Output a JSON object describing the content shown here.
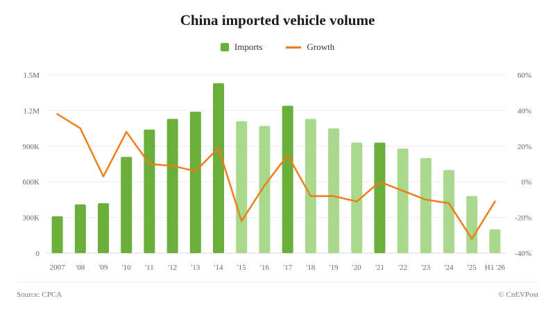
{
  "chart_data": {
    "type": "bar",
    "title": "China imported vehicle volume",
    "categories": [
      "2007",
      "'08",
      "'09",
      "'10",
      "'11",
      "'12",
      "'13",
      "'14",
      "'15",
      "'16",
      "'17",
      "'18",
      "'19",
      "'20",
      "'21",
      "'22",
      "'23",
      "'24",
      "'25",
      "H1 '26"
    ],
    "series": [
      {
        "name": "Imports",
        "type": "bar",
        "axis": "left",
        "values": [
          310000,
          410000,
          420000,
          810000,
          1040000,
          1130000,
          1190000,
          1430000,
          1110000,
          1070000,
          1240000,
          1130000,
          1050000,
          930000,
          930000,
          880000,
          800000,
          700000,
          480000,
          200000
        ],
        "highlighted": [
          true,
          true,
          true,
          true,
          true,
          true,
          true,
          true,
          false,
          false,
          true,
          false,
          false,
          false,
          true,
          false,
          false,
          false,
          false,
          false
        ]
      },
      {
        "name": "Growth",
        "type": "line",
        "axis": "right",
        "values": [
          38,
          30,
          3,
          28,
          10,
          9,
          6,
          19,
          -22,
          -2,
          15,
          -8,
          -8,
          -11,
          0,
          -5,
          -10,
          -12,
          -32,
          -11
        ]
      }
    ],
    "yleft": {
      "ylim": [
        0,
        1500000
      ],
      "ticks": [
        "0",
        "300K",
        "600K",
        "900K",
        "1.2M",
        "1.5M"
      ]
    },
    "yright": {
      "ylim": [
        -40,
        60
      ],
      "ticks": [
        "-40%",
        "-20%",
        "0%",
        "20%",
        "40%",
        "60%"
      ]
    },
    "grid": true,
    "legend_position": "top-center"
  },
  "colors": {
    "bar_dark": "#6aae3b",
    "bar_light": "#a8d98c",
    "line": "#ee7d1c"
  },
  "footer": {
    "source": "Source: CPCA",
    "credit": "© CnEVPost"
  }
}
